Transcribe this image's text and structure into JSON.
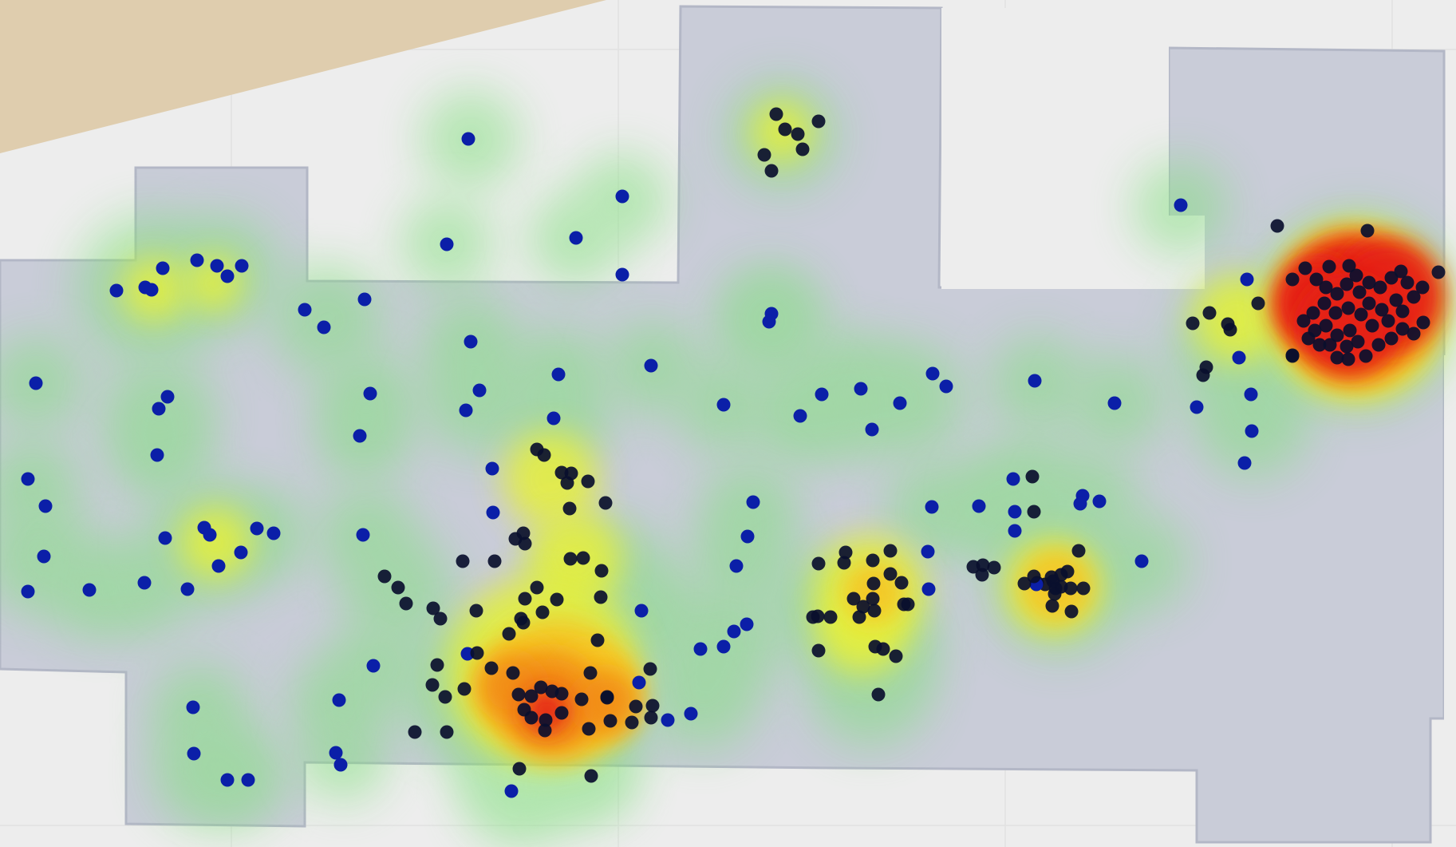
{
  "map": {
    "background_color": "#ededed",
    "grid_color": "#e2e2e2",
    "building_color": "#c9ccd8",
    "building_edge_color": "#b3b7c6",
    "terrain_color": "#dfcdae",
    "point_color": "#0b1fa8",
    "dense_point_color": "#0a0f2e",
    "heat_colors": [
      "#7fe07a",
      "#e6ef3a",
      "#f7c320",
      "#f28a12",
      "#e52012"
    ]
  },
  "heatmap": {
    "legend": null,
    "hotspots": [
      {
        "zone": "east-room",
        "intensity": "highest"
      },
      {
        "zone": "south-central-corridor",
        "intensity": "high"
      },
      {
        "zone": "central-east",
        "intensity": "medium"
      },
      {
        "zone": "north-room",
        "intensity": "low"
      }
    ]
  }
}
